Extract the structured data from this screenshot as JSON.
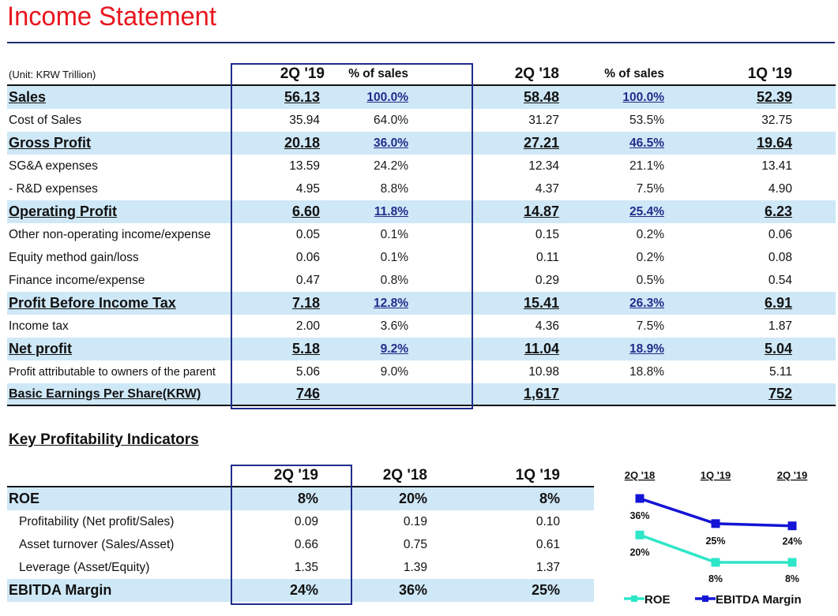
{
  "title": "Income Statement",
  "income": {
    "unit": "(Unit: KRW Trillion)",
    "headers": [
      "2Q '19",
      "% of sales",
      "2Q '18",
      "% of sales",
      "1Q '19"
    ],
    "rows": [
      {
        "label": "Sales",
        "v1": "56.13",
        "p1": "100.0%",
        "v2": "58.48",
        "p2": "100.0%",
        "v3": "52.39"
      },
      {
        "label": "Cost of Sales",
        "v1": "35.94",
        "p1": "64.0%",
        "v2": "31.27",
        "p2": "53.5%",
        "v3": "32.75"
      },
      {
        "label": "Gross Profit",
        "v1": "20.18",
        "p1": "36.0%",
        "v2": "27.21",
        "p2": "46.5%",
        "v3": "19.64"
      },
      {
        "label": "SG&A expenses",
        "v1": "13.59",
        "p1": "24.2%",
        "v2": "12.34",
        "p2": "21.1%",
        "v3": "13.41"
      },
      {
        "label": " - R&D expenses",
        "v1": "4.95",
        "p1": "8.8%",
        "v2": "4.37",
        "p2": "7.5%",
        "v3": "4.90"
      },
      {
        "label": "Operating Profit",
        "v1": "6.60",
        "p1": "11.8%",
        "v2": "14.87",
        "p2": "25.4%",
        "v3": "6.23"
      },
      {
        "label": "Other non-operating income/expense",
        "v1": "0.05",
        "p1": "0.1%",
        "v2": "0.15",
        "p2": "0.2%",
        "v3": "0.06"
      },
      {
        "label": "Equity method gain/loss",
        "v1": "0.06",
        "p1": "0.1%",
        "v2": "0.11",
        "p2": "0.2%",
        "v3": "0.08"
      },
      {
        "label": "Finance income/expense",
        "v1": "0.47",
        "p1": "0.8%",
        "v2": "0.29",
        "p2": "0.5%",
        "v3": "0.54"
      },
      {
        "label": "Profit Before Income Tax",
        "v1": "7.18",
        "p1": "12.8%",
        "v2": "15.41",
        "p2": "26.3%",
        "v3": "6.91"
      },
      {
        "label": "Income tax",
        "v1": "2.00",
        "p1": "3.6%",
        "v2": "4.36",
        "p2": "7.5%",
        "v3": "1.87"
      },
      {
        "label": "Net profit",
        "v1": "5.18",
        "p1": "9.2%",
        "v2": "11.04",
        "p2": "18.9%",
        "v3": "5.04"
      },
      {
        "label": "Profit attributable to owners of the parent",
        "v1": "5.06",
        "p1": "9.0%",
        "v2": "10.98",
        "p2": "18.8%",
        "v3": "5.11"
      },
      {
        "label": "Basic Earnings Per Share(KRW)",
        "v1": "746",
        "p1": "",
        "v2": "1,617",
        "p2": "",
        "v3": "752"
      }
    ]
  },
  "kpi": {
    "title": "Key Profitability Indicators",
    "headers": [
      "2Q '19",
      "2Q '18",
      "1Q '19"
    ],
    "rows": [
      {
        "label": "ROE",
        "v1": "8%",
        "v2": "20%",
        "v3": "8%"
      },
      {
        "label": "Profitability (Net profit/Sales)",
        "v1": "0.09",
        "v2": "0.19",
        "v3": "0.10"
      },
      {
        "label": "Asset turnover (Sales/Asset)",
        "v1": "0.66",
        "v2": "0.75",
        "v3": "0.61"
      },
      {
        "label": "Leverage (Asset/Equity)",
        "v1": "1.35",
        "v2": "1.39",
        "v3": "1.37"
      },
      {
        "label": "EBITDA Margin",
        "v1": "24%",
        "v2": "36%",
        "v3": "25%"
      }
    ]
  },
  "chart_data": {
    "type": "line",
    "categories": [
      "2Q '18",
      "1Q '19",
      "2Q '19"
    ],
    "series": [
      {
        "name": "ROE",
        "values": [
          20,
          8,
          8
        ],
        "labels": [
          "20%",
          "8%",
          "8%"
        ],
        "color": "#2ee6c8"
      },
      {
        "name": "EBITDA Margin",
        "values": [
          36,
          25,
          24
        ],
        "labels": [
          "36%",
          "25%",
          "24%"
        ],
        "color": "#1414d6"
      }
    ],
    "legend_position": "bottom"
  },
  "colors": {
    "title": "#e8161e",
    "highlight": "#cfe8f7",
    "box": "#1f2d8b"
  }
}
